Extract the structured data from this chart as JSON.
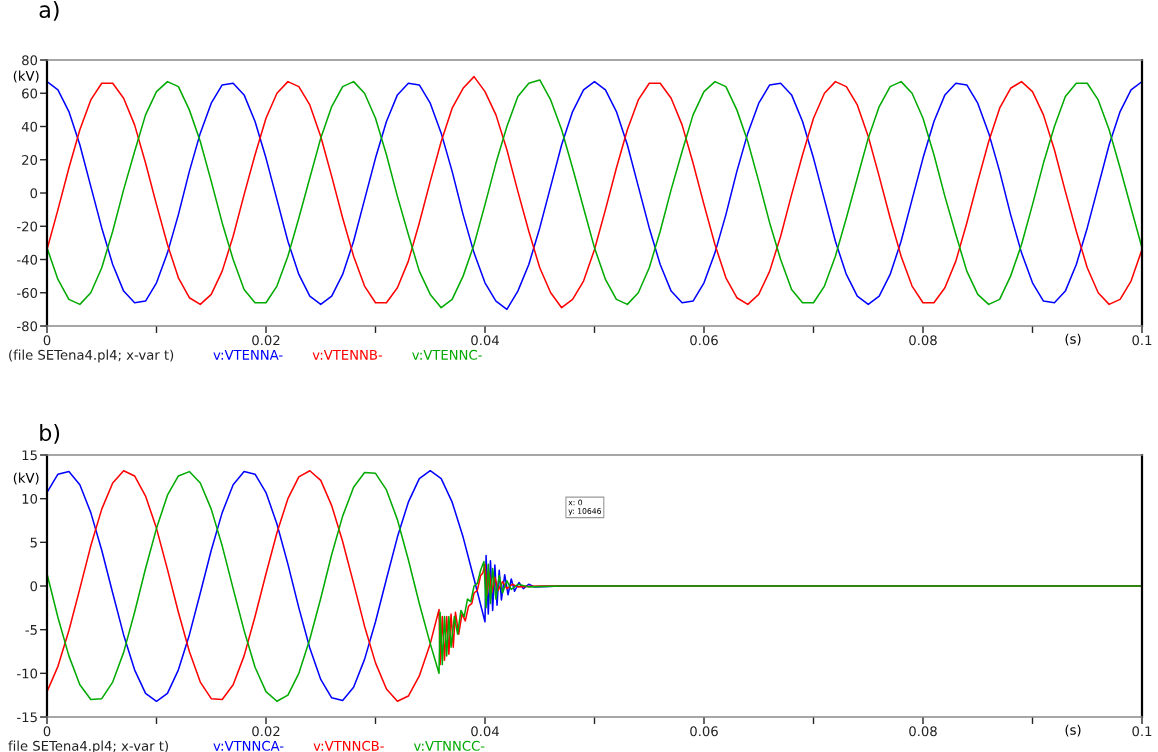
{
  "chart_data": [
    {
      "type": "line",
      "title": "a)",
      "xlabel": "(s)",
      "ylabel": "(kV)",
      "legend": "bottom",
      "xlim": [
        0,
        0.1
      ],
      "ylim": [
        -80,
        80
      ],
      "xticks": [
        0,
        {
          "value": 0.01,
          "label": null
        },
        0.02,
        {
          "value": 0.03,
          "label": null
        },
        0.04,
        {
          "value": 0.05,
          "label": null
        },
        0.06,
        {
          "value": 0.07,
          "label": null
        },
        0.08,
        {
          "value": 0.09,
          "label": null
        },
        0.1
      ],
      "yticks": [
        -80,
        -60,
        -40,
        -20,
        0,
        20,
        40,
        60,
        80
      ],
      "annotations": [
        "(file SETena4.pl4; x-var t)"
      ],
      "x": [
        0,
        0.001,
        0.002,
        0.003,
        0.004,
        0.005,
        0.006,
        0.007,
        0.008,
        0.009,
        0.01,
        0.011,
        0.012,
        0.013,
        0.014,
        0.015,
        0.016,
        0.017,
        0.018,
        0.019,
        0.02,
        0.021,
        0.022,
        0.023,
        0.024,
        0.025,
        0.026,
        0.027,
        0.028,
        0.029,
        0.03,
        0.031,
        0.032,
        0.033,
        0.034,
        0.035,
        0.036,
        0.037,
        0.038,
        0.039,
        0.04,
        0.041,
        0.042,
        0.043,
        0.044,
        0.045,
        0.046,
        0.047,
        0.048,
        0.049,
        0.05,
        0.051,
        0.052,
        0.053,
        0.054,
        0.055,
        0.056,
        0.057,
        0.058,
        0.059,
        0.06,
        0.061,
        0.062,
        0.063,
        0.064,
        0.065,
        0.066,
        0.067,
        0.068,
        0.069,
        0.07,
        0.071,
        0.072,
        0.073,
        0.074,
        0.075,
        0.076,
        0.077,
        0.078,
        0.079,
        0.08,
        0.081,
        0.082,
        0.083,
        0.084,
        0.085,
        0.086,
        0.087,
        0.088,
        0.089,
        0.09,
        0.091,
        0.092,
        0.093,
        0.094,
        0.095,
        0.096,
        0.097,
        0.098,
        0.099,
        0.1
      ],
      "series": [
        {
          "name": "v:VTENNA-",
          "color": "#0000ff",
          "values": [
            67,
            62,
            49,
            29,
            4,
            -21,
            -43,
            -59,
            -66,
            -65,
            -54,
            -36,
            -13,
            13,
            36,
            54,
            65,
            66,
            59,
            43,
            21,
            -4,
            -29,
            -49,
            -62,
            -67,
            -62,
            -49,
            -29,
            -4,
            21,
            43,
            59,
            66,
            65,
            54,
            36,
            13,
            -13,
            -36,
            -54,
            -65,
            -70,
            -59,
            -43,
            -21,
            4,
            29,
            49,
            62,
            67,
            62,
            49,
            29,
            4,
            -21,
            -43,
            -59,
            -66,
            -65,
            -54,
            -36,
            -13,
            13,
            36,
            54,
            65,
            66,
            59,
            43,
            21,
            -4,
            -29,
            -49,
            -62,
            -67,
            -62,
            -49,
            -29,
            -4,
            21,
            43,
            59,
            66,
            65,
            54,
            36,
            13,
            -13,
            -36,
            -54,
            -65,
            -66,
            -59,
            -43,
            -21,
            4,
            29,
            49,
            62,
            67
          ]
        },
        {
          "name": "v:VTENNB-",
          "color": "#ff0000",
          "values": [
            -34,
            -10,
            15,
            38,
            56,
            66,
            66,
            57,
            41,
            18,
            -7,
            -31,
            -51,
            -63,
            -67,
            -61,
            -47,
            -26,
            -1,
            23,
            45,
            60,
            67,
            64,
            53,
            34,
            10,
            -15,
            -38,
            -56,
            -66,
            -66,
            -57,
            -41,
            -18,
            7,
            31,
            51,
            63,
            70,
            61,
            47,
            26,
            1,
            -23,
            -45,
            -60,
            -69,
            -64,
            -53,
            -34,
            -10,
            15,
            38,
            56,
            66,
            66,
            57,
            41,
            18,
            -7,
            -31,
            -51,
            -63,
            -67,
            -61,
            -47,
            -26,
            -1,
            23,
            45,
            60,
            67,
            64,
            53,
            34,
            10,
            -15,
            -38,
            -56,
            -66,
            -66,
            -57,
            -41,
            -18,
            7,
            31,
            51,
            63,
            67,
            61,
            47,
            26,
            1,
            -23,
            -45,
            -60,
            -67,
            -64,
            -53,
            -34
          ]
        },
        {
          "name": "v:VTENNC-",
          "color": "#00aa00",
          "values": [
            -33,
            -52,
            -64,
            -67,
            -60,
            -45,
            -23,
            2,
            25,
            47,
            61,
            67,
            64,
            50,
            31,
            7,
            -18,
            -40,
            -58,
            -66,
            -66,
            -56,
            -38,
            -15,
            9,
            33,
            52,
            64,
            67,
            60,
            45,
            23,
            -2,
            -25,
            -47,
            -61,
            -69,
            -64,
            -50,
            -31,
            -7,
            18,
            40,
            58,
            66,
            68,
            56,
            38,
            15,
            -9,
            -33,
            -52,
            -64,
            -67,
            -60,
            -45,
            -23,
            2,
            25,
            47,
            61,
            67,
            64,
            50,
            31,
            7,
            -18,
            -40,
            -58,
            -66,
            -66,
            -56,
            -38,
            -15,
            9,
            33,
            52,
            64,
            67,
            60,
            45,
            23,
            -2,
            -25,
            -47,
            -61,
            -67,
            -64,
            -50,
            -31,
            -7,
            18,
            40,
            58,
            66,
            66,
            56,
            38,
            15,
            -9,
            -33
          ]
        }
      ]
    },
    {
      "type": "line",
      "title": "b)",
      "xlabel": "(s)",
      "ylabel": "(kV)",
      "legend": "bottom",
      "xlim": [
        0,
        0.1
      ],
      "ylim": [
        -15,
        15
      ],
      "xticks": [
        0,
        {
          "value": 0.01,
          "label": null
        },
        0.02,
        {
          "value": 0.03,
          "label": null
        },
        0.04,
        {
          "value": 0.05,
          "label": null
        },
        0.06,
        {
          "value": 0.07,
          "label": null
        },
        0.08,
        {
          "value": 0.09,
          "label": null
        },
        0.1
      ],
      "yticks": [
        -15,
        -10,
        -5,
        0,
        5,
        10,
        15
      ],
      "annotations": [
        "file SETena4.pl4; x-var t)",
        "x: 0\ny: 10646"
      ],
      "series": [
        {
          "name": "v:VTNNCA-",
          "color": "#0000ff",
          "x": [
            0,
            0.001,
            0.002,
            0.003,
            0.004,
            0.005,
            0.006,
            0.007,
            0.008,
            0.009,
            0.01,
            0.011,
            0.012,
            0.013,
            0.014,
            0.015,
            0.016,
            0.017,
            0.018,
            0.019,
            0.02,
            0.021,
            0.022,
            0.023,
            0.024,
            0.025,
            0.026,
            0.027,
            0.028,
            0.029,
            0.03,
            0.031,
            0.032,
            0.033,
            0.034,
            0.035,
            0.036,
            0.037,
            0.038,
            0.039,
            0.04,
            0.0401,
            0.0403,
            0.0405,
            0.0407,
            0.0409,
            0.0411,
            0.0413,
            0.0415,
            0.0418,
            0.0421,
            0.0424,
            0.0427,
            0.0431,
            0.0435,
            0.044,
            0.0445,
            0.047,
            0.1
          ],
          "values": [
            10.7,
            12.8,
            13.1,
            11.6,
            8.4,
            4.1,
            -0.8,
            -5.6,
            -9.6,
            -12.3,
            -13.2,
            -12.3,
            -9.6,
            -5.6,
            -0.8,
            4.1,
            8.4,
            11.6,
            13.1,
            12.8,
            10.7,
            7.1,
            2.5,
            -2.5,
            -7.1,
            -10.7,
            -12.8,
            -13.1,
            -11.6,
            -8.4,
            -4.1,
            0.8,
            5.6,
            9.6,
            12.3,
            13.2,
            12.3,
            9.6,
            5.6,
            0.8,
            -4.1,
            3.5,
            -3.2,
            2.9,
            -2.8,
            2.4,
            -2.2,
            1.8,
            -1.6,
            1.3,
            -1.0,
            0.8,
            -0.6,
            0.4,
            -0.3,
            0.2,
            -0.1,
            0,
            0
          ]
        },
        {
          "name": "v:VTNNCB-",
          "color": "#ff0000",
          "x": [
            0,
            0.001,
            0.002,
            0.003,
            0.004,
            0.005,
            0.006,
            0.007,
            0.008,
            0.009,
            0.01,
            0.011,
            0.012,
            0.013,
            0.014,
            0.015,
            0.016,
            0.017,
            0.018,
            0.019,
            0.02,
            0.021,
            0.022,
            0.023,
            0.024,
            0.025,
            0.026,
            0.027,
            0.028,
            0.029,
            0.03,
            0.031,
            0.032,
            0.033,
            0.034,
            0.035,
            0.0358,
            0.0359,
            0.0361,
            0.0363,
            0.0365,
            0.0367,
            0.0369,
            0.0371,
            0.0373,
            0.0376,
            0.0379,
            0.0382,
            0.0385,
            0.0388,
            0.039,
            0.0393,
            0.0396,
            0.0398,
            0.04,
            0.0402,
            0.0404,
            0.0406,
            0.0409,
            0.0412,
            0.0416,
            0.042,
            0.0425,
            0.043,
            0.045,
            0.1
          ],
          "values": [
            -12.1,
            -9.2,
            -5.1,
            -0.3,
            4.6,
            8.8,
            11.8,
            13.2,
            12.6,
            10.3,
            6.6,
            1.9,
            -3.0,
            -7.5,
            -11.0,
            -12.9,
            -13.0,
            -11.3,
            -8.0,
            -3.5,
            1.4,
            6.1,
            10.0,
            12.5,
            13.2,
            12.1,
            9.2,
            5.1,
            0.3,
            -4.6,
            -8.8,
            -11.8,
            -13.2,
            -12.6,
            -10.3,
            -6.6,
            -2.7,
            -9,
            -3.5,
            -8.5,
            -3.5,
            -7.8,
            -3.2,
            -7,
            -3,
            -5.5,
            -3.2,
            -4,
            -2.3,
            -2,
            -0.8,
            -0.5,
            1.2,
            1.5,
            2.5,
            -1,
            1.5,
            -0.8,
            1,
            -0.5,
            0.5,
            -0.3,
            0.2,
            -0.1,
            0,
            0
          ]
        },
        {
          "name": "v:VTNNCC-",
          "color": "#00aa00",
          "x": [
            0,
            0.001,
            0.002,
            0.003,
            0.004,
            0.005,
            0.006,
            0.007,
            0.008,
            0.009,
            0.01,
            0.011,
            0.012,
            0.013,
            0.014,
            0.015,
            0.016,
            0.017,
            0.018,
            0.019,
            0.02,
            0.021,
            0.022,
            0.023,
            0.024,
            0.025,
            0.026,
            0.027,
            0.028,
            0.029,
            0.03,
            0.031,
            0.032,
            0.033,
            0.034,
            0.035,
            0.0358,
            0.0359,
            0.0361,
            0.0363,
            0.0365,
            0.0367,
            0.0369,
            0.0372,
            0.0375,
            0.0378,
            0.0381,
            0.0384,
            0.0387,
            0.039,
            0.0393,
            0.0396,
            0.0399,
            0.0401,
            0.0403,
            0.0405,
            0.0407,
            0.041,
            0.0413,
            0.0416,
            0.042,
            0.0424,
            0.043,
            0.044,
            0.047,
            0.1
          ],
          "values": [
            1.4,
            -3.6,
            -8.0,
            -11.3,
            -13.0,
            -12.9,
            -11.0,
            -7.6,
            -3.0,
            2.0,
            6.6,
            10.4,
            12.6,
            13.1,
            11.8,
            8.8,
            4.6,
            -0.3,
            -5.1,
            -9.3,
            -12.1,
            -13.2,
            -12.5,
            -10.0,
            -6.1,
            -1.4,
            3.6,
            8.0,
            11.3,
            13.0,
            12.9,
            11.0,
            7.6,
            3.0,
            -2.0,
            -6.6,
            -10,
            -3,
            -9,
            -3.5,
            -8,
            -3.5,
            -7,
            -3.5,
            -5.5,
            -2.8,
            -3.5,
            -1.5,
            -1.8,
            0,
            0.3,
            1.8,
            2.8,
            -2.5,
            2.5,
            -2,
            2,
            -1.5,
            1.2,
            -0.8,
            0.6,
            -0.4,
            0.2,
            -0.1,
            0,
            0
          ]
        }
      ]
    }
  ]
}
